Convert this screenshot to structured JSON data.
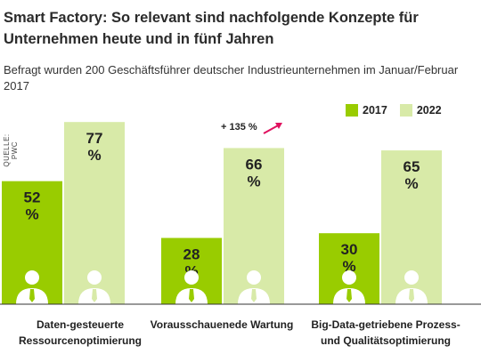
{
  "title": "Smart Factory: So relevant sind nachfolgende Konzepte für Unternehmen heute und in fünf Jahren",
  "subtitle": "Befragt wurden 200 Geschäftsführer deutscher Industrieunternehmen im Januar/Februar 2017",
  "source": "QUELLE: PWC",
  "annotation": "+ 135 %",
  "colors": {
    "2017": "#99cc00",
    "2022": "#d8eaa8",
    "accent": "#e0115f"
  },
  "chart_data": {
    "type": "bar",
    "categories": [
      "Daten-gesteuerte Ressourcenoptimierung",
      "Vorausschauenede Wartung",
      "Big-Data-getriebene Prozess- und Qualitätsoptimierung"
    ],
    "series": [
      {
        "name": "2017",
        "values": [
          52,
          28,
          30
        ]
      },
      {
        "name": "2022",
        "values": [
          77,
          66,
          65
        ]
      }
    ],
    "value_labels": {
      "2017": [
        "52 %",
        "28 %",
        "30 %"
      ],
      "2022": [
        "77 %",
        "66 %",
        "65 %"
      ]
    },
    "ylim": [
      0,
      100
    ],
    "legend": "top-right"
  }
}
